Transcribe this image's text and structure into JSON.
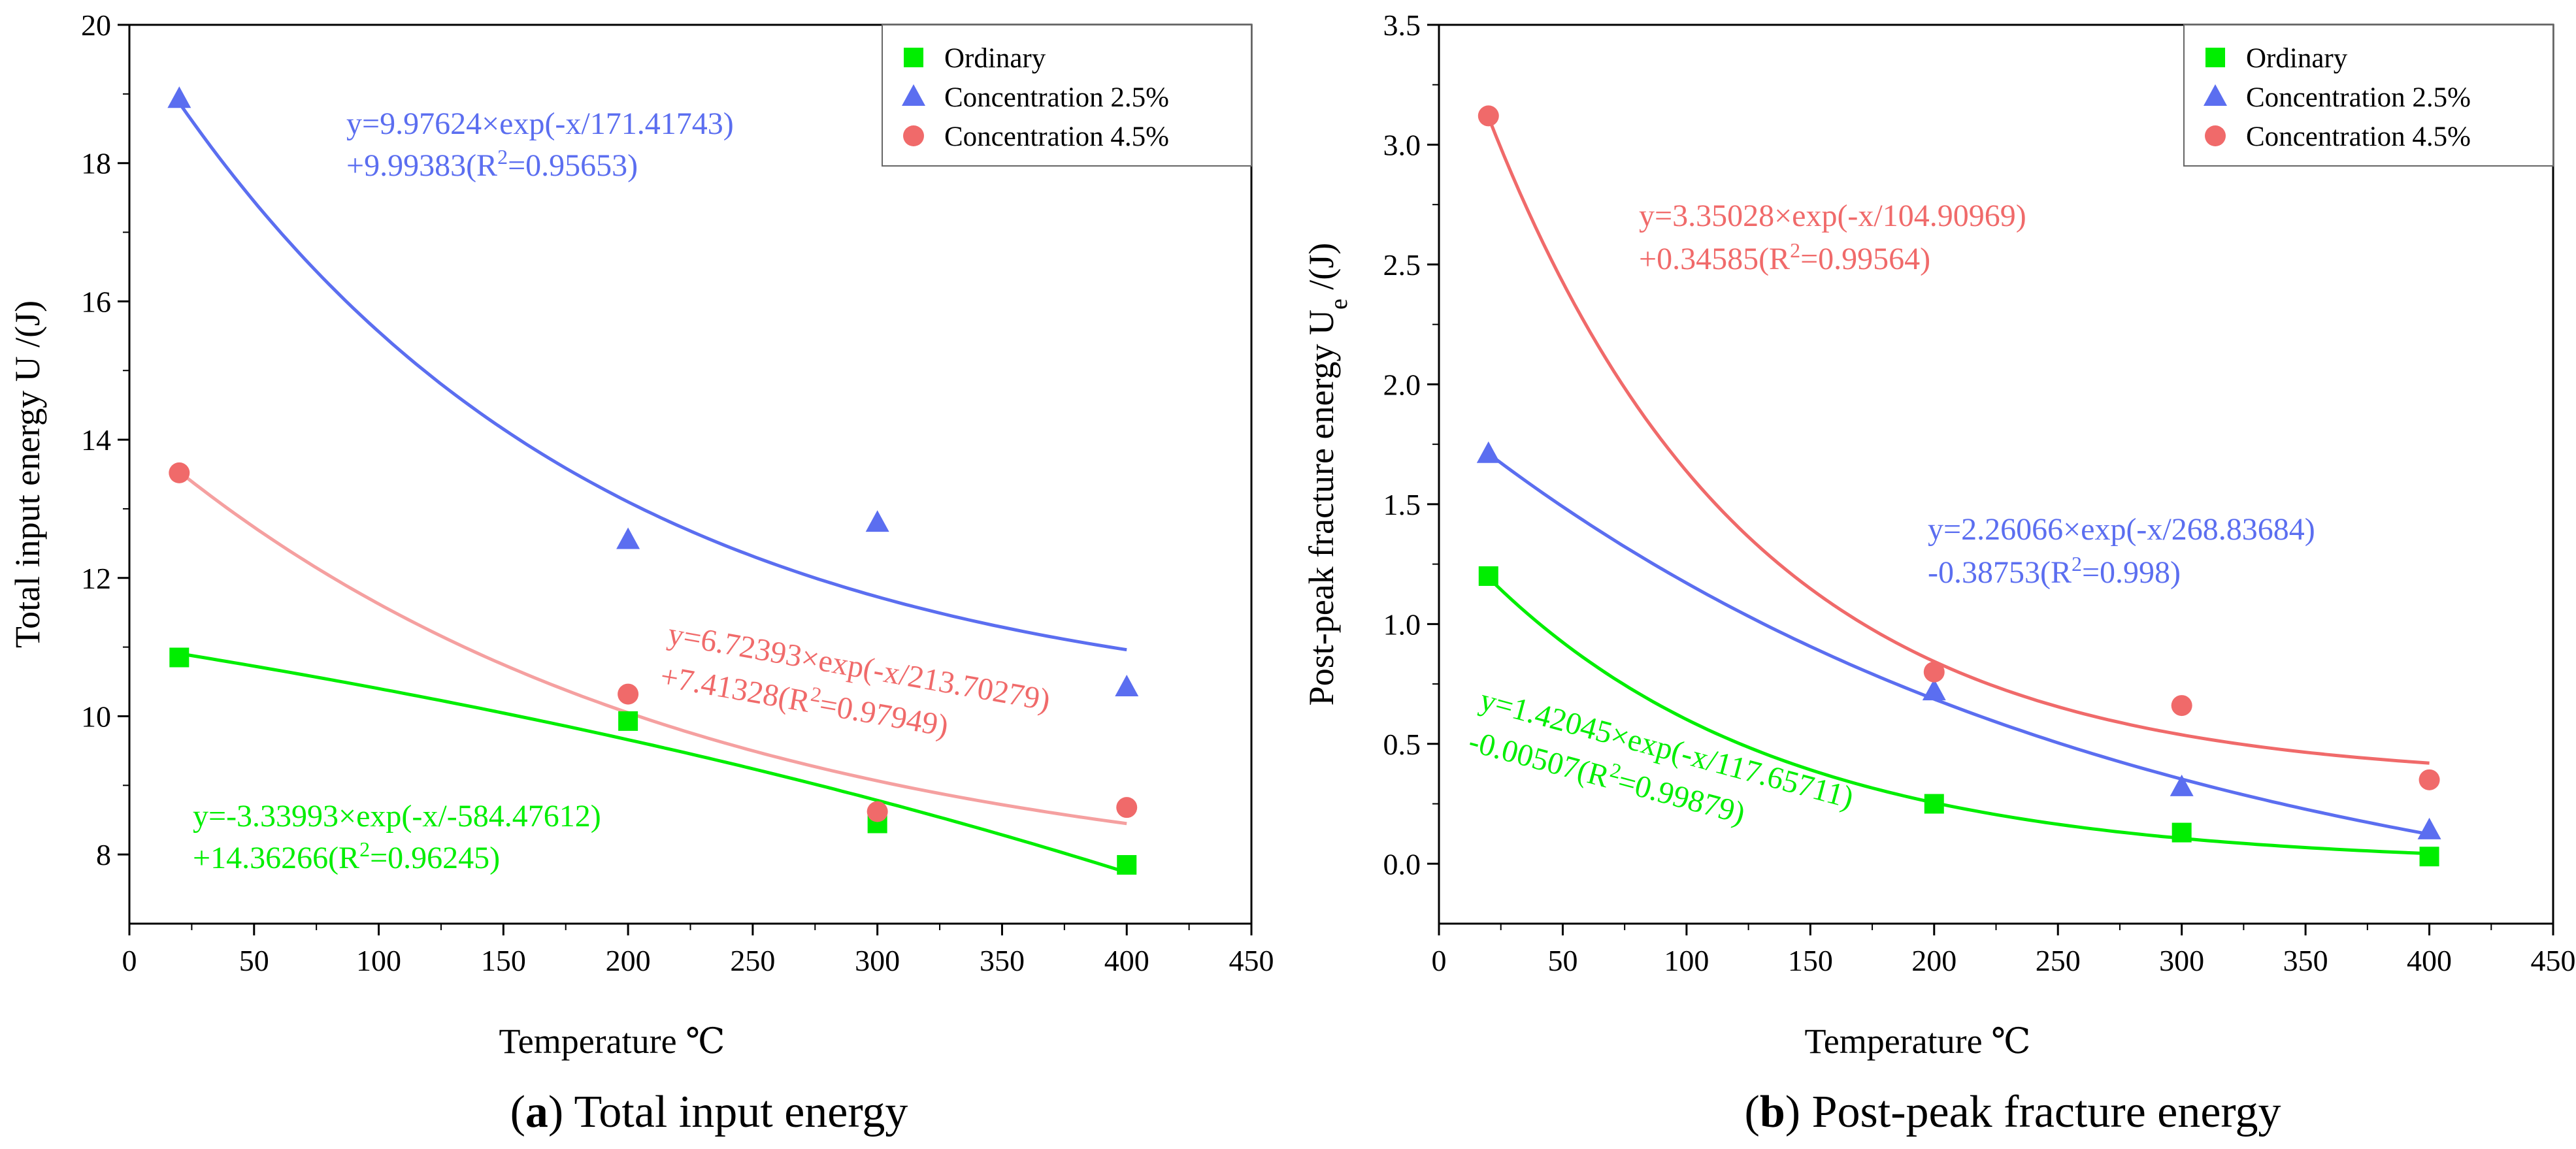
{
  "colors": {
    "ordinary": "#00ee00",
    "conc25": "#5b6ef0",
    "conc45": "#f06a6a",
    "conc45_fit_a": "#f5a0a0"
  },
  "chart_data": [
    {
      "type": "scatter",
      "panel": "a",
      "caption_letter": "a",
      "caption_text": " Total input energy",
      "caption_open": "(",
      "caption_close": ")",
      "xlabel": "Temperature ℃",
      "ylabel": "Total input energy U /(J)",
      "xlim": [
        0,
        450
      ],
      "ylim": [
        7,
        20
      ],
      "xticks": [
        0,
        50,
        100,
        150,
        200,
        250,
        300,
        350,
        400,
        450
      ],
      "yticks": [
        8,
        10,
        12,
        14,
        16,
        18,
        20
      ],
      "legend_position": "top-right",
      "series": [
        {
          "name": "Ordinary",
          "marker": "square",
          "color": "ordinary",
          "x": [
            20,
            200,
            300,
            400
          ],
          "y": [
            10.85,
            9.93,
            8.45,
            7.85
          ],
          "fit": {
            "a": -3.33993,
            "t": -584.47612,
            "c": 14.36266
          },
          "equation": [
            "y=-3.33993×exp(-x/-584.47612)",
            "+14.36266(R",
            "2",
            "=0.96245)"
          ]
        },
        {
          "name": "Concentration 2.5%",
          "marker": "triangle",
          "color": "conc25",
          "x": [
            20,
            200,
            300,
            400
          ],
          "y": [
            18.93,
            12.55,
            12.8,
            10.42
          ],
          "fit": {
            "a": 9.97624,
            "t": 171.41743,
            "c": 9.99383
          },
          "equation": [
            "y=9.97624×exp(-x/171.41743)",
            "+9.99383(R",
            "2",
            "=0.95653)"
          ]
        },
        {
          "name": "Concentration 4.5%",
          "marker": "circle",
          "color": "conc45",
          "x": [
            20,
            200,
            300,
            400
          ],
          "y": [
            13.52,
            10.32,
            8.62,
            8.68
          ],
          "fit": {
            "a": 6.72393,
            "t": 213.70279,
            "c": 7.41328
          },
          "equation": [
            "y=6.72393×exp(-x/213.70279)",
            "+7.41328(R",
            "2",
            "=0.97949)"
          ]
        }
      ]
    },
    {
      "type": "scatter",
      "panel": "b",
      "caption_letter": "b",
      "caption_text": " Post-peak fracture energy",
      "caption_open": "(",
      "caption_close": ")",
      "xlabel": "Temperature ℃",
      "ylabel_main": "Post-peak fracture energy U",
      "ylabel_sub": "e",
      "ylabel_tail": " /(J)",
      "xlim": [
        0,
        450
      ],
      "ylim": [
        -0.25,
        3.5
      ],
      "xticks": [
        0,
        50,
        100,
        150,
        200,
        250,
        300,
        350,
        400,
        450
      ],
      "yticks": [
        "0.0",
        "0.5",
        "1.0",
        "1.5",
        "2.0",
        "2.5",
        "3.0",
        "3.5"
      ],
      "legend_position": "top-right",
      "series": [
        {
          "name": "Ordinary",
          "marker": "square",
          "color": "ordinary",
          "x": [
            20,
            200,
            300,
            400
          ],
          "y": [
            1.2,
            0.25,
            0.13,
            0.03
          ],
          "fit": {
            "a": 1.42045,
            "t": 117.65711,
            "c": -0.00507
          },
          "equation": [
            "y=1.42045×exp(-x/117.65711)",
            "-0.00507(R",
            "2",
            "=0.99879)"
          ]
        },
        {
          "name": "Concentration 2.5%",
          "marker": "triangle",
          "color": "conc25",
          "x": [
            20,
            200,
            300,
            400
          ],
          "y": [
            1.71,
            0.72,
            0.32,
            0.14
          ],
          "fit": {
            "a": 2.26066,
            "t": 268.83684,
            "c": -0.38753
          },
          "equation": [
            "y=2.26066×exp(-x/268.83684)",
            "-0.38753(R",
            "2",
            "=0.998)"
          ]
        },
        {
          "name": "Concentration 4.5%",
          "marker": "circle",
          "color": "conc45",
          "x": [
            20,
            200,
            300,
            400
          ],
          "y": [
            3.12,
            0.8,
            0.66,
            0.35
          ],
          "fit": {
            "a": 3.35028,
            "t": 104.90969,
            "c": 0.34585
          },
          "equation": [
            "y=3.35028×exp(-x/104.90969)",
            "+0.34585(R",
            "2",
            "=0.99564)"
          ]
        }
      ]
    }
  ]
}
